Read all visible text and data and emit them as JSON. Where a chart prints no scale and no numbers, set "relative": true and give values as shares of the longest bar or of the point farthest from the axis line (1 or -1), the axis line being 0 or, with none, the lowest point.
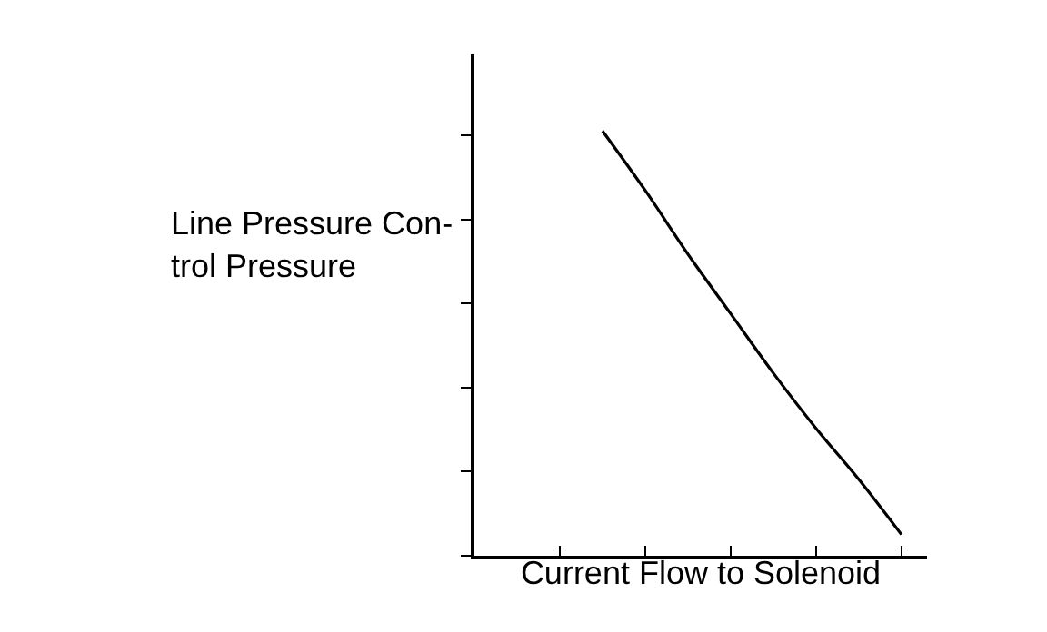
{
  "chart_data": {
    "type": "line",
    "relative": true,
    "xlabel": "Current Flow to Solenoid",
    "ylabel": "Line Pressure Con-\ntrol Pressure",
    "categories": [
      null,
      null,
      null,
      null,
      null,
      null,
      null,
      null,
      null,
      null,
      null
    ],
    "series": [
      {
        "color": "#000000",
        "values": [
          null,
          null,
          null,
          1,
          0.86,
          0.71,
          0.57,
          0.43,
          0.3,
          0.18,
          0.05
        ]
      }
    ],
    "tick_labels": false,
    "marker": "none",
    "line_style": "solid"
  }
}
